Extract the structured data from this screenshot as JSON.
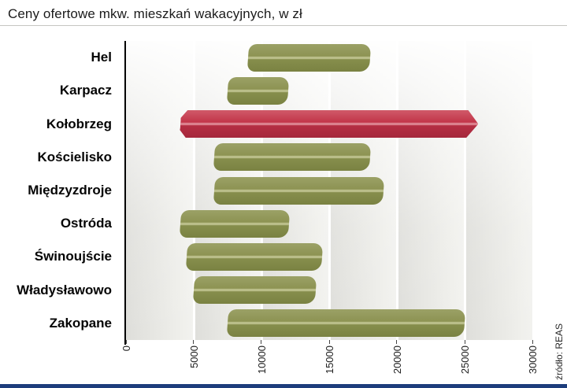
{
  "header": {
    "title": "Ceny ofertowe mkw. mieszkań wakacyjnych, w zł"
  },
  "source_label": "źródło: REAS",
  "colors": {
    "bar_green": "#8d9353",
    "bar_highlight_red": "#c23549",
    "axis": "#000000",
    "footer_accent": "#1d3d7c",
    "plot_band_gray": "#e3e3df"
  },
  "chart_data": {
    "type": "bar",
    "orientation": "horizontal-range",
    "title": "Ceny ofertowe mkw. mieszkań wakacyjnych, w zł",
    "categories": [
      "Hel",
      "Karpacz",
      "Kołobrzeg",
      "Kościelisko",
      "Międzyzdroje",
      "Ostróda",
      "Świnoujście",
      "Władysławowo",
      "Zakopane"
    ],
    "ranges": [
      [
        9000,
        18000
      ],
      [
        7500,
        12000
      ],
      [
        4000,
        26000
      ],
      [
        6500,
        18000
      ],
      [
        6500,
        19000
      ],
      [
        4000,
        12000
      ],
      [
        4500,
        14500
      ],
      [
        5000,
        14000
      ],
      [
        7500,
        25000
      ]
    ],
    "highlight_category": "Kołobrzeg",
    "x_ticks": [
      0,
      5000,
      10000,
      15000,
      20000,
      25000,
      30000
    ],
    "xlim": [
      0,
      30000
    ],
    "grid": "vertical-white-lines",
    "legend": "none",
    "source": "źródło: REAS"
  }
}
